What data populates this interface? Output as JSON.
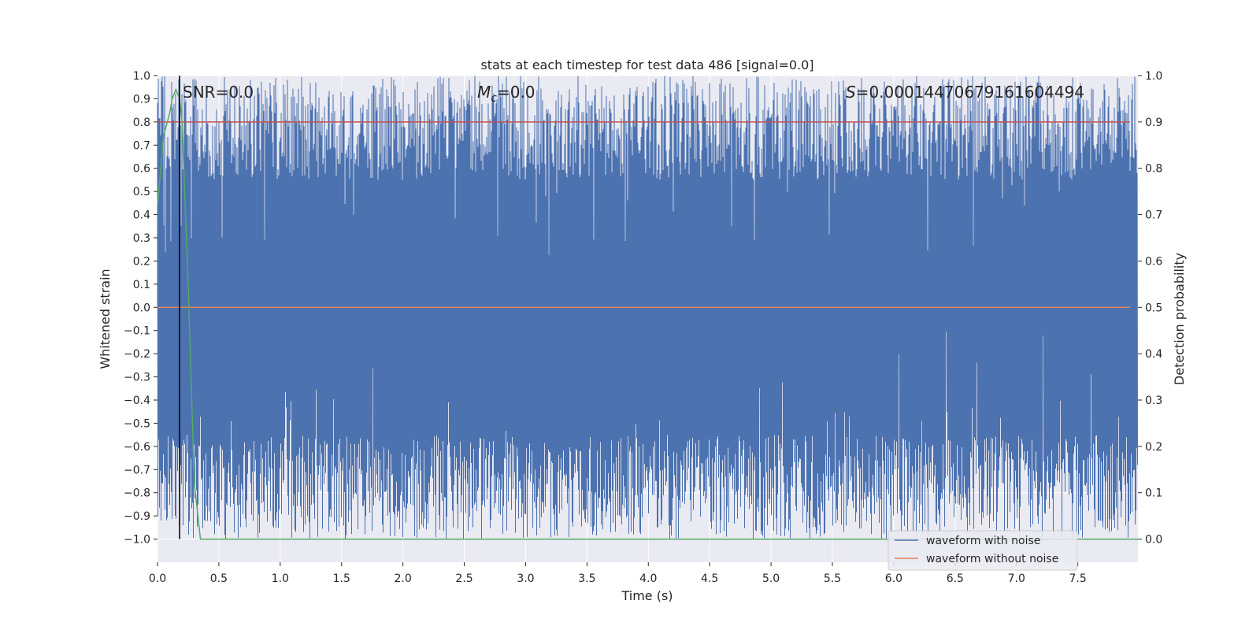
{
  "chart_data": {
    "type": "line",
    "title": "stats at each timestep for test data 486 [signal=0.0]",
    "xlabel": "Time (s)",
    "ylabel": "Whitened strain",
    "y2label": "Detection probability",
    "xlim": [
      0.0,
      7.99
    ],
    "ylim": [
      -1.1,
      1.0
    ],
    "y2lim": [
      -0.05,
      1.0
    ],
    "xticks": [
      "0.0",
      "0.5",
      "1.0",
      "1.5",
      "2.0",
      "2.5",
      "3.0",
      "3.5",
      "4.0",
      "4.5",
      "5.0",
      "5.5",
      "6.0",
      "6.5",
      "7.0",
      "7.5"
    ],
    "yticks": [
      "1.0",
      "0.9",
      "0.8",
      "0.7",
      "0.6",
      "0.5",
      "0.4",
      "0.3",
      "0.2",
      "0.1",
      "0.0",
      "−0.1",
      "−0.2",
      "−0.3",
      "−0.4",
      "−0.5",
      "−0.6",
      "−0.7",
      "−0.8",
      "−0.9",
      "−1.0"
    ],
    "y2ticks": [
      "1.0",
      "0.9",
      "0.8",
      "0.7",
      "0.6",
      "0.5",
      "0.4",
      "0.3",
      "0.2",
      "0.1",
      "0.0"
    ],
    "annotations": {
      "snr_prefix": "SNR=",
      "snr_value": "0.0",
      "mc_symbol": "M",
      "mc_subscript": "c",
      "mc_value": "=0.0",
      "s_symbol": "S",
      "s_value": "=0.0001447067916160449 4"
    },
    "annotations_display": {
      "s_value": "=0.00014470679161604494"
    },
    "series": [
      {
        "name": "waveform with noise",
        "color": "#4c72b0",
        "description_level": "noise fills ~[-1.0, 1.0]"
      },
      {
        "name": "waveform without noise",
        "color": "#dd8452",
        "values_constant": 0.0
      },
      {
        "color": "#55a868",
        "x": [
          0.0,
          0.05,
          0.1,
          0.12,
          0.15,
          0.18,
          0.2,
          0.25,
          0.3,
          0.35,
          0.4,
          7.99
        ],
        "y2": [
          0.72,
          0.87,
          0.92,
          0.95,
          0.97,
          0.95,
          0.9,
          0.55,
          0.12,
          0.0,
          0.0,
          0.0
        ]
      },
      {
        "color": "#c44e52",
        "y2_constant": 0.9
      }
    ],
    "vline_x": 0.18,
    "legend": {
      "placement": "lower-right",
      "entries": [
        "waveform with noise",
        "waveform without noise"
      ]
    },
    "grid": true
  }
}
